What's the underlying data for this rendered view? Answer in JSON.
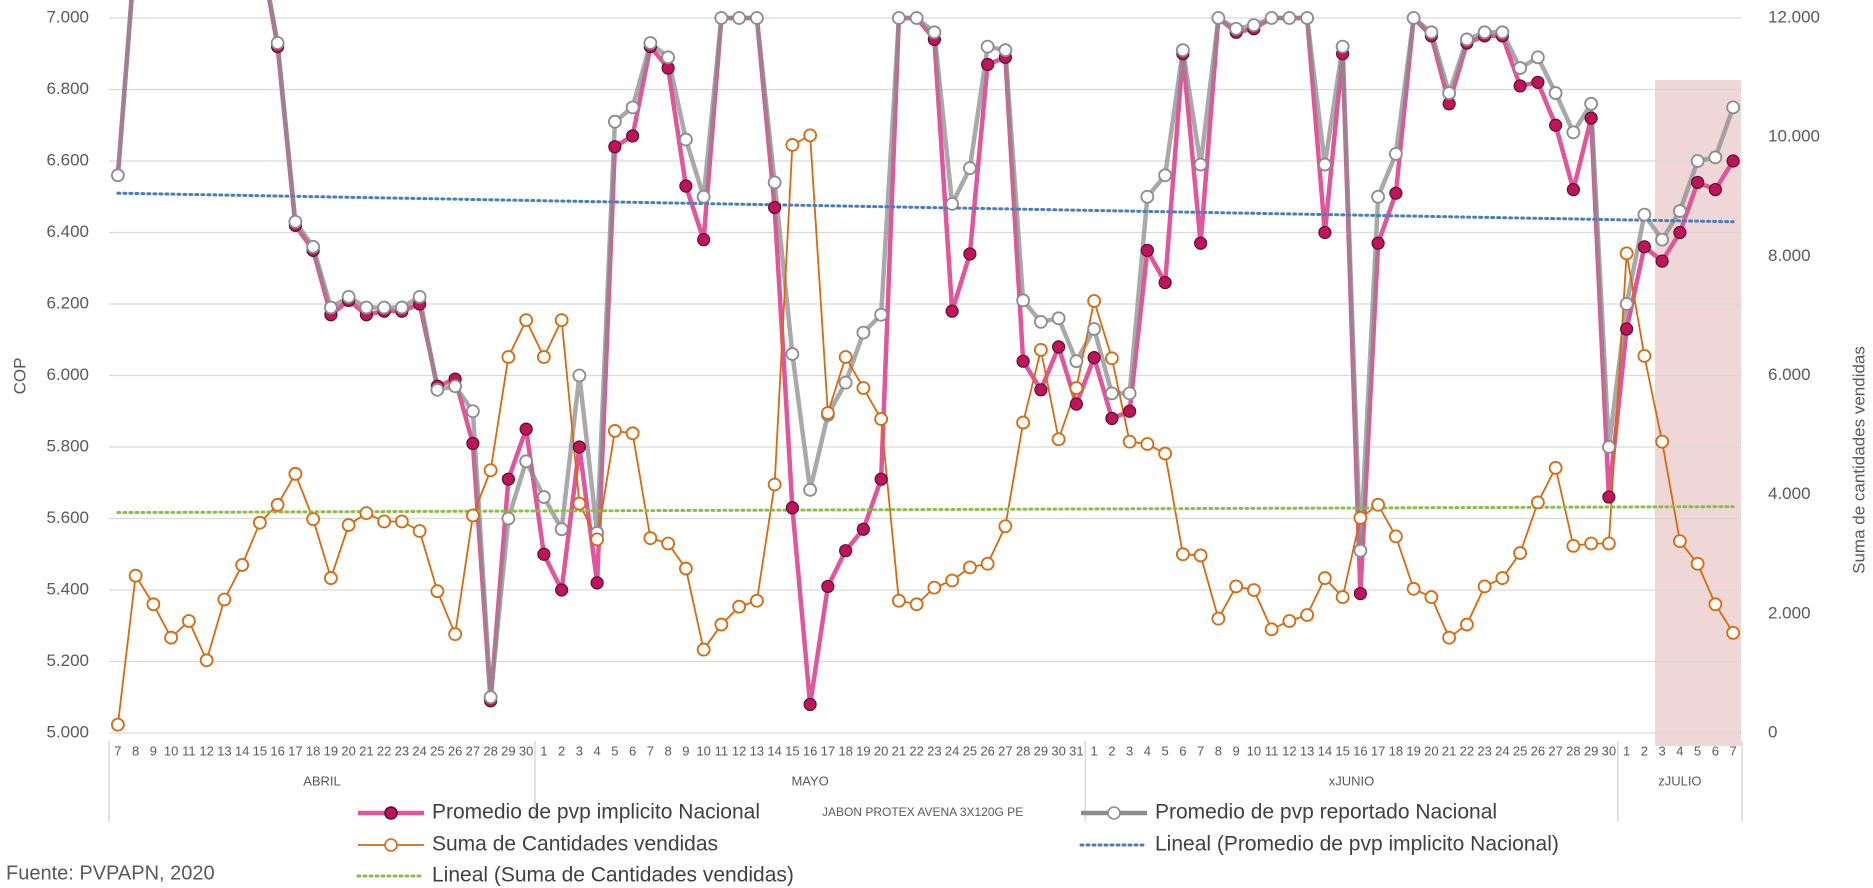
{
  "chart_data": {
    "type": "line",
    "title": "JABON PROTEX AVENA 3X120G PE",
    "source": "Fuente: PVPAPN, 2020",
    "ylabel": "COP",
    "y2label": "Suma de cantidades vendidas",
    "category_groups": [
      {
        "label": "ABRIL",
        "categories": [
          "7",
          "8",
          "9",
          "10",
          "11",
          "12",
          "13",
          "14",
          "15",
          "16",
          "17",
          "18",
          "19",
          "20",
          "21",
          "22",
          "23",
          "24",
          "25",
          "26",
          "27",
          "28",
          "29",
          "30"
        ]
      },
      {
        "label": "MAYO",
        "categories": [
          "1",
          "2",
          "3",
          "4",
          "5",
          "6",
          "7",
          "8",
          "9",
          "10",
          "11",
          "12",
          "13",
          "14",
          "15",
          "16",
          "17",
          "18",
          "19",
          "20",
          "21",
          "22",
          "23",
          "24",
          "25",
          "26",
          "27",
          "28",
          "29",
          "30",
          "31"
        ]
      },
      {
        "label": "xJUNIO",
        "categories": [
          "1",
          "2",
          "3",
          "4",
          "5",
          "6",
          "7",
          "8",
          "9",
          "10",
          "11",
          "12",
          "13",
          "14",
          "15",
          "16",
          "17",
          "18",
          "19",
          "20",
          "21",
          "22",
          "23",
          "24",
          "25",
          "26",
          "27",
          "28",
          "29",
          "30"
        ]
      },
      {
        "label": "zJULIO",
        "categories": [
          "1",
          "2",
          "3",
          "4",
          "5",
          "6",
          "7"
        ]
      }
    ],
    "ylim": [
      5000,
      7000
    ],
    "yticks": [
      {
        "value": 5000,
        "label": "5.000"
      },
      {
        "value": 5200,
        "label": "5.200"
      },
      {
        "value": 5400,
        "label": "5.400"
      },
      {
        "value": 5600,
        "label": "5.600"
      },
      {
        "value": 5800,
        "label": "5.800"
      },
      {
        "value": 6000,
        "label": "6.000"
      },
      {
        "value": 6200,
        "label": "6.200"
      },
      {
        "value": 6400,
        "label": "6.400"
      },
      {
        "value": 6600,
        "label": "6.600"
      },
      {
        "value": 6800,
        "label": "6.800"
      },
      {
        "value": 7000,
        "label": "7.000"
      }
    ],
    "y2lim": [
      0,
      12000
    ],
    "y2ticks": [
      0,
      {
        "value": 2000,
        "label": "2.000"
      },
      {
        "value": 4000,
        "label": "4.000"
      },
      {
        "value": 6000,
        "label": "6.000"
      },
      {
        "value": 8000,
        "label": "8.000"
      },
      {
        "value": 10000,
        "label": "10.000"
      },
      {
        "value": 12000,
        "label": "12.000"
      }
    ],
    "grid": true,
    "series": [
      {
        "name": "Promedio de pvp implicito Nacional",
        "color": "#e0559c",
        "marker_color": "#c0145a",
        "marker": "filled",
        "values": [
          6560,
          7200,
          7200,
          7200,
          7200,
          7200,
          7200,
          7200,
          7200,
          6920,
          6420,
          6350,
          6170,
          6210,
          6170,
          6180,
          6180,
          6200,
          5970,
          5990,
          5810,
          5090,
          5710,
          5850,
          5500,
          5400,
          5800,
          5420,
          6640,
          6670,
          6920,
          6860,
          6530,
          6380,
          7000,
          7000,
          7000,
          6470,
          5630,
          5080,
          5410,
          5510,
          5570,
          5710,
          7000,
          7000,
          6940,
          6180,
          6340,
          6870,
          6890,
          6040,
          5960,
          6080,
          5920,
          6050,
          5880,
          5900,
          6350,
          6260,
          6900,
          6370,
          7000,
          6960,
          6970,
          7000,
          7000,
          7000,
          6400,
          6900,
          5390,
          6370,
          6510,
          7000,
          6950,
          6760,
          6930,
          6950,
          6950,
          6810,
          6820,
          6700,
          6520,
          6720,
          5660,
          6130,
          6360,
          6320,
          6400,
          6540,
          6520,
          6600
        ]
      },
      {
        "name": "Promedio de pvp reportado Nacional",
        "color": "#8c8c8c",
        "marker_color": "#8c8c8c",
        "marker": "hollow",
        "values": [
          6560,
          7200,
          7200,
          7200,
          7200,
          7200,
          7200,
          7200,
          7200,
          6930,
          6430,
          6360,
          6190,
          6220,
          6190,
          6190,
          6190,
          6220,
          5960,
          5970,
          5900,
          5100,
          5600,
          5760,
          5660,
          5570,
          6000,
          5560,
          6710,
          6750,
          6930,
          6890,
          6660,
          6500,
          7000,
          7000,
          7000,
          6540,
          6060,
          5680,
          5890,
          5980,
          6120,
          6170,
          7000,
          7000,
          6960,
          6480,
          6580,
          6920,
          6910,
          6210,
          6150,
          6160,
          6040,
          6130,
          5950,
          5950,
          6500,
          6560,
          6910,
          6590,
          7000,
          6970,
          6980,
          7000,
          7000,
          7000,
          6590,
          6920,
          5510,
          6500,
          6620,
          7000,
          6960,
          6790,
          6940,
          6960,
          6960,
          6860,
          6890,
          6790,
          6680,
          6760,
          5800,
          6200,
          6450,
          6380,
          6460,
          6600,
          6610,
          6750
        ]
      },
      {
        "name": "Suma de Cantidades vendidas",
        "color": "#d9690f",
        "marker_color": "#d9690f",
        "marker": "hollow",
        "axis": "y2",
        "values": [
          140,
          2640,
          2160,
          1600,
          1880,
          1220,
          2240,
          2820,
          3530,
          3830,
          4350,
          3590,
          2600,
          3490,
          3690,
          3550,
          3550,
          3390,
          2380,
          1660,
          3650,
          4410,
          6310,
          6930,
          6310,
          6930,
          3850,
          3250,
          5070,
          5030,
          3270,
          3180,
          2760,
          1400,
          1820,
          2120,
          2220,
          4170,
          9870,
          10030,
          5370,
          6310,
          5790,
          5270,
          2220,
          2160,
          2440,
          2560,
          2780,
          2840,
          3470,
          5210,
          6430,
          4930,
          5790,
          7250,
          6290,
          4890,
          4850,
          4690,
          3000,
          2980,
          1920,
          2460,
          2400,
          1740,
          1880,
          1980,
          2600,
          2280,
          3610,
          3830,
          3300,
          2420,
          2280,
          1600,
          1820,
          2460,
          2600,
          3020,
          3870,
          4450,
          3140,
          3180,
          3180,
          8050,
          6330,
          4890,
          3220,
          2840,
          2160,
          1680
        ]
      }
    ],
    "trendlines": [
      {
        "name": "Lineal (Promedio de pvp implicito Nacional)",
        "color": "#4a7ebb",
        "start": 6510,
        "end": 6430
      },
      {
        "name": "Lineal (Suma de Cantidades vendidas)",
        "color": "#8cbf4a",
        "axis": "y2",
        "start": 3700,
        "end": 3800
      }
    ]
  }
}
